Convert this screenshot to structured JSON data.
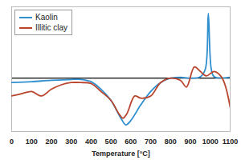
{
  "chart_data": {
    "type": "line",
    "x_label": "Temperature [°C]",
    "xlim": [
      0,
      1100
    ],
    "xticks": [
      0,
      100,
      200,
      300,
      400,
      500,
      600,
      700,
      800,
      900,
      1000,
      1100
    ],
    "ylim": [
      -12,
      16
    ],
    "yticks": [
      0
    ],
    "grid": true,
    "tick_labels": "x",
    "legend": "top-left",
    "series": [
      {
        "name": "Kaolin",
        "color": "#2f8fcf",
        "x": [
          0,
          100,
          200,
          300,
          350,
          400,
          450,
          500,
          550,
          575,
          600,
          650,
          700,
          750,
          800,
          850,
          900,
          950,
          975,
          990,
          1005,
          1020,
          1100
        ],
        "values": [
          -1,
          -0.8,
          -0.5,
          -0.3,
          -0.3,
          -0.8,
          -2.5,
          -5,
          -9,
          -10.5,
          -9.5,
          -6,
          -3,
          -1,
          0,
          0.2,
          0,
          0.3,
          2,
          14.5,
          2,
          0.3,
          0.2
        ]
      },
      {
        "name": "Illitic clay",
        "color": "#b8452c",
        "x": [
          0,
          50,
          100,
          150,
          200,
          250,
          300,
          350,
          400,
          450,
          500,
          540,
          560,
          580,
          620,
          650,
          700,
          750,
          800,
          850,
          880,
          920,
          950,
          980,
          1020,
          1060,
          1100
        ],
        "values": [
          -4,
          -3.5,
          -3,
          -4,
          -2.5,
          -1.5,
          -1,
          -1,
          -1.2,
          -3,
          -5,
          -8,
          -9,
          -8,
          -4,
          -4.5,
          -4,
          -1,
          0,
          -0.5,
          -2,
          2.5,
          1.5,
          0.5,
          1.5,
          0,
          -6.5
        ]
      }
    ]
  }
}
